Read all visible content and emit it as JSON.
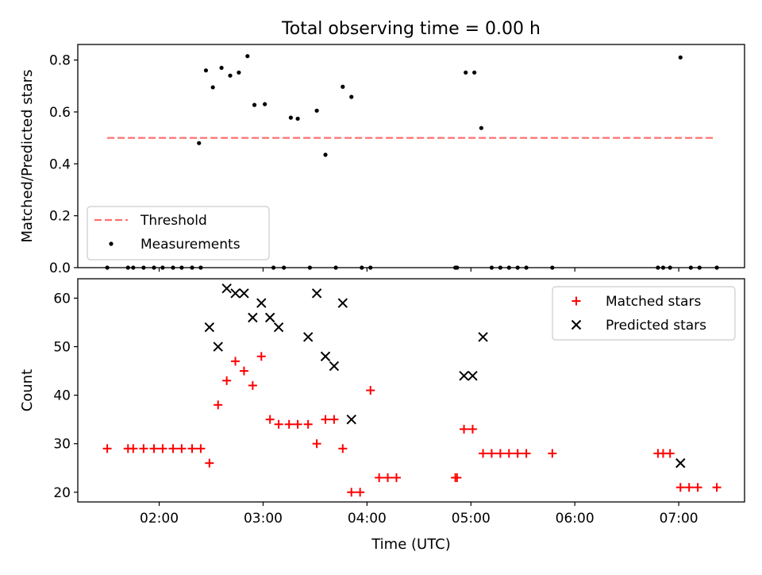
{
  "figure": {
    "title": "Total observing time = 0.00 h"
  },
  "chart_data": [
    {
      "type": "scatter",
      "ylabel": "Matched/Predicted stars",
      "xlim": [
        "01:13",
        "07:38"
      ],
      "ylim": [
        0,
        0.86
      ],
      "yticks": [
        0.0,
        0.2,
        0.4,
        0.6,
        0.8
      ],
      "yticklabels": [
        "0.0",
        "0.2",
        "0.4",
        "0.6",
        "0.8"
      ],
      "xticks": [
        "02:00",
        "03:00",
        "04:00",
        "05:00",
        "06:00",
        "07:00"
      ],
      "grid": false,
      "legend": {
        "placement": "lower-left",
        "entries": [
          "Threshold",
          "Measurements"
        ]
      },
      "threshold": {
        "name": "Threshold",
        "y": 0.5,
        "x_range": [
          "01:30",
          "07:20"
        ],
        "color": "#ff7070",
        "style": "dashed"
      },
      "series": [
        {
          "name": "Measurements",
          "color": "#000000",
          "marker": "dot",
          "points": [
            [
              "01:30",
              0.0
            ],
            [
              "01:42",
              0.0
            ],
            [
              "01:45",
              0.0
            ],
            [
              "01:51",
              0.0
            ],
            [
              "01:57",
              0.0
            ],
            [
              "02:02",
              0.0
            ],
            [
              "02:08",
              0.0
            ],
            [
              "02:13",
              0.0
            ],
            [
              "02:19",
              0.0
            ],
            [
              "02:24",
              0.0
            ],
            [
              "02:23",
              0.48
            ],
            [
              "02:27",
              0.76
            ],
            [
              "02:31",
              0.695
            ],
            [
              "02:36",
              0.77
            ],
            [
              "02:41",
              0.74
            ],
            [
              "02:46",
              0.752
            ],
            [
              "02:51",
              0.815
            ],
            [
              "02:55",
              0.627
            ],
            [
              "03:01",
              0.63
            ],
            [
              "03:16",
              0.578
            ],
            [
              "03:20",
              0.574
            ],
            [
              "03:31",
              0.605
            ],
            [
              "03:36",
              0.435
            ],
            [
              "03:46",
              0.697
            ],
            [
              "03:51",
              0.658
            ],
            [
              "03:06",
              0.0
            ],
            [
              "03:12",
              0.0
            ],
            [
              "03:27",
              0.0
            ],
            [
              "03:42",
              0.0
            ],
            [
              "03:57",
              0.0
            ],
            [
              "04:02",
              0.0
            ],
            [
              "04:51",
              0.0
            ],
            [
              "04:52",
              0.0
            ],
            [
              "04:57",
              0.752
            ],
            [
              "05:02",
              0.752
            ],
            [
              "05:06",
              0.538
            ],
            [
              "05:12",
              0.0
            ],
            [
              "05:17",
              0.0
            ],
            [
              "05:22",
              0.0
            ],
            [
              "05:27",
              0.0
            ],
            [
              "05:32",
              0.0
            ],
            [
              "05:47",
              0.0
            ],
            [
              "06:48",
              0.0
            ],
            [
              "06:51",
              0.0
            ],
            [
              "06:55",
              0.0
            ],
            [
              "07:01",
              0.81
            ],
            [
              "07:07",
              0.0
            ],
            [
              "07:12",
              0.0
            ],
            [
              "07:22",
              0.0
            ]
          ]
        }
      ]
    },
    {
      "type": "scatter",
      "ylabel": "Count",
      "xlabel": "Time (UTC)",
      "xlim": [
        "01:13",
        "07:38"
      ],
      "ylim": [
        18,
        64
      ],
      "yticks": [
        20,
        30,
        40,
        50,
        60
      ],
      "yticklabels": [
        "20",
        "30",
        "40",
        "50",
        "60"
      ],
      "xticks": [
        "02:00",
        "03:00",
        "04:00",
        "05:00",
        "06:00",
        "07:00"
      ],
      "xticklabels": [
        "02:00",
        "03:00",
        "04:00",
        "05:00",
        "06:00",
        "07:00"
      ],
      "grid": false,
      "legend": {
        "placement": "top-right",
        "entries": [
          "Matched stars",
          "Predicted stars"
        ]
      },
      "series": [
        {
          "name": "Matched stars",
          "color": "#ff0000",
          "marker": "plus",
          "points": [
            [
              "01:30",
              29
            ],
            [
              "01:42",
              29
            ],
            [
              "01:45",
              29
            ],
            [
              "01:51",
              29
            ],
            [
              "01:57",
              29
            ],
            [
              "02:02",
              29
            ],
            [
              "02:08",
              29
            ],
            [
              "02:13",
              29
            ],
            [
              "02:19",
              29
            ],
            [
              "02:24",
              29
            ],
            [
              "02:29",
              26
            ],
            [
              "02:34",
              38
            ],
            [
              "02:39",
              43
            ],
            [
              "02:44",
              47
            ],
            [
              "02:49",
              45
            ],
            [
              "02:54",
              42
            ],
            [
              "02:59",
              48
            ],
            [
              "03:04",
              35
            ],
            [
              "03:09",
              34
            ],
            [
              "03:15",
              34
            ],
            [
              "03:20",
              34
            ],
            [
              "03:26",
              34
            ],
            [
              "03:31",
              30
            ],
            [
              "03:36",
              35
            ],
            [
              "03:41",
              35
            ],
            [
              "03:46",
              29
            ],
            [
              "03:51",
              20
            ],
            [
              "03:56",
              20
            ],
            [
              "04:02",
              41
            ],
            [
              "04:07",
              23
            ],
            [
              "04:12",
              23
            ],
            [
              "04:17",
              23
            ],
            [
              "04:51",
              23
            ],
            [
              "04:52",
              23
            ],
            [
              "04:56",
              33
            ],
            [
              "05:01",
              33
            ],
            [
              "05:07",
              28
            ],
            [
              "05:12",
              28
            ],
            [
              "05:17",
              28
            ],
            [
              "05:22",
              28
            ],
            [
              "05:27",
              28
            ],
            [
              "05:32",
              28
            ],
            [
              "05:47",
              28
            ],
            [
              "06:48",
              28
            ],
            [
              "06:51",
              28
            ],
            [
              "06:55",
              28
            ],
            [
              "07:01",
              21
            ],
            [
              "07:06",
              21
            ],
            [
              "07:11",
              21
            ],
            [
              "07:22",
              21
            ]
          ]
        },
        {
          "name": "Predicted stars",
          "color": "#000000",
          "marker": "x",
          "points": [
            [
              "02:29",
              54
            ],
            [
              "02:34",
              50
            ],
            [
              "02:39",
              62
            ],
            [
              "02:44",
              61
            ],
            [
              "02:49",
              61
            ],
            [
              "02:54",
              56
            ],
            [
              "02:59",
              59
            ],
            [
              "03:04",
              56
            ],
            [
              "03:09",
              54
            ],
            [
              "03:26",
              52
            ],
            [
              "03:31",
              61
            ],
            [
              "03:36",
              48
            ],
            [
              "03:41",
              46
            ],
            [
              "03:46",
              59
            ],
            [
              "03:51",
              35
            ],
            [
              "04:56",
              44
            ],
            [
              "05:01",
              44
            ],
            [
              "05:07",
              52
            ],
            [
              "07:01",
              26
            ]
          ]
        }
      ]
    }
  ]
}
